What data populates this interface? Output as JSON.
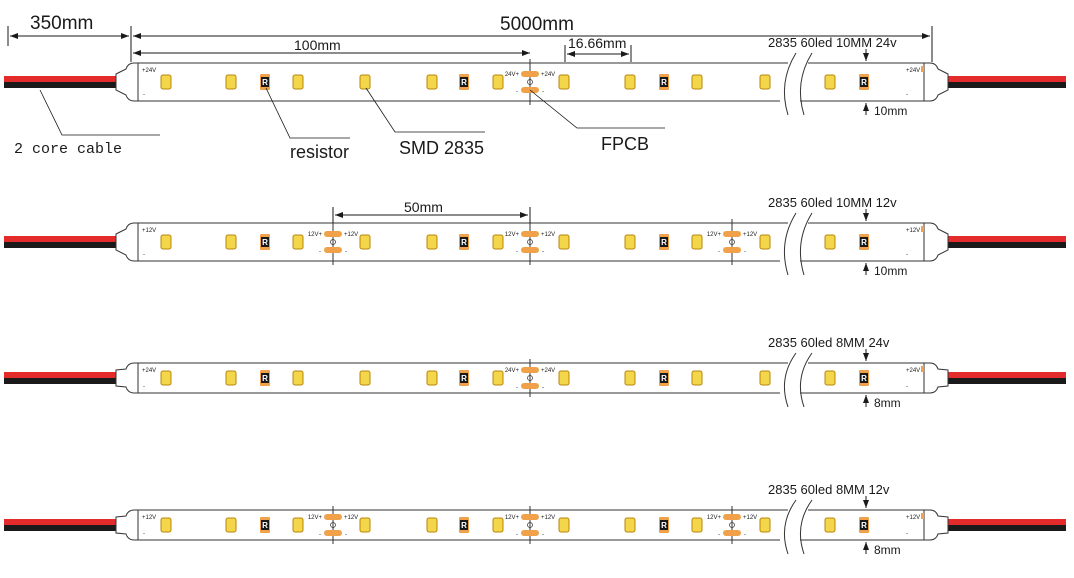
{
  "colors": {
    "led_fill": "#f4d64a",
    "led_edge": "#b8860b",
    "pad": "#f0a14a",
    "resistor": "#1a1a1a",
    "wire_red": "#e32b2b",
    "wire_black": "#1a1a1a",
    "outline": "#333333"
  },
  "top": {
    "cable_length": "350mm",
    "strip_length": "5000mm",
    "segment_length": "100mm",
    "led_pitch": "16.66mm",
    "cable_label": "2 core cable",
    "resistor_label": "resistor",
    "smd_label": "SMD 2835",
    "fpcb_label": "FPCB"
  },
  "strips": [
    {
      "spec": "2835  60led 10MM  24v",
      "width_label": "10mm",
      "end_label": "+24V",
      "pad_v": "24V",
      "cut_points": [
        530
      ],
      "led_xs": [
        166,
        231,
        298,
        365,
        432,
        498,
        564,
        630,
        697,
        765,
        830
      ],
      "res_xs": [
        265,
        464,
        664,
        864
      ],
      "height": 38,
      "dim": null
    },
    {
      "spec": "2835  60led 10MM  12v",
      "width_label": "10mm",
      "end_label": "+12V",
      "pad_v": "12V",
      "cut_points": [
        333,
        530,
        732
      ],
      "led_xs": [
        166,
        231,
        298,
        365,
        432,
        498,
        564,
        630,
        697,
        765,
        830
      ],
      "res_xs": [
        265,
        464,
        664,
        864
      ],
      "height": 38,
      "dim": "50mm"
    },
    {
      "spec": "2835  60led 8MM  24v",
      "width_label": "8mm",
      "end_label": "+24V",
      "pad_v": "24V",
      "cut_points": [
        530
      ],
      "led_xs": [
        166,
        231,
        298,
        365,
        432,
        498,
        564,
        630,
        697,
        765,
        830
      ],
      "res_xs": [
        265,
        464,
        664,
        864
      ],
      "height": 30,
      "dim": null
    },
    {
      "spec": "2835  60led 8MM  12v",
      "width_label": "8mm",
      "end_label": "+12V",
      "pad_v": "12V",
      "cut_points": [
        333,
        530,
        732
      ],
      "led_xs": [
        166,
        231,
        298,
        365,
        432,
        498,
        564,
        630,
        697,
        765,
        830
      ],
      "res_xs": [
        265,
        464,
        664,
        864
      ],
      "height": 30,
      "dim": null
    }
  ]
}
